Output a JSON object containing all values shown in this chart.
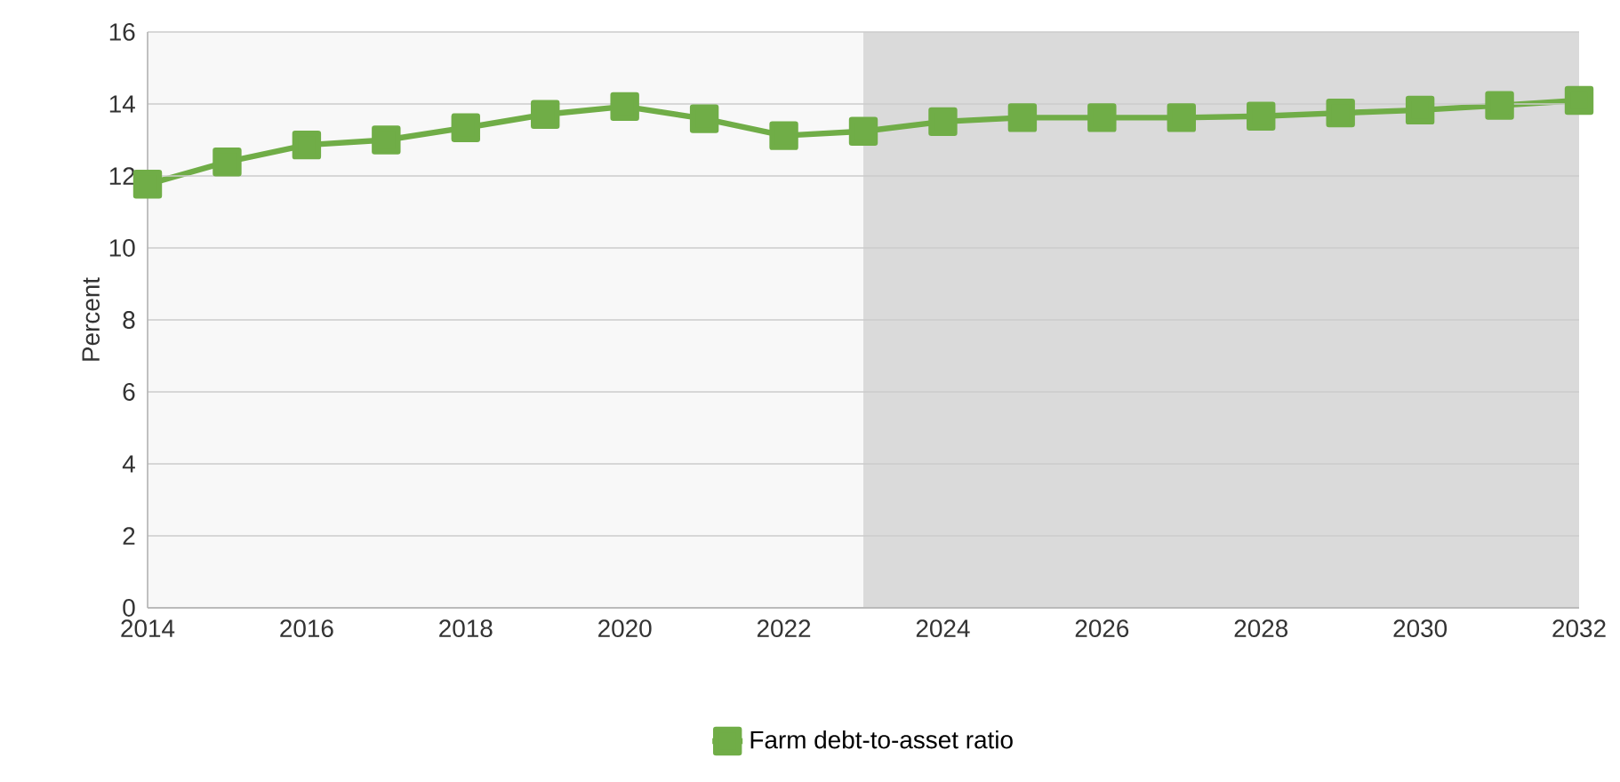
{
  "chart_data": {
    "type": "line",
    "ylabel": "Percent",
    "x": [
      2014,
      2015,
      2016,
      2017,
      2018,
      2019,
      2020,
      2021,
      2022,
      2023,
      2024,
      2025,
      2026,
      2027,
      2028,
      2029,
      2030,
      2031,
      2032
    ],
    "series": [
      {
        "name": "Farm debt-to-asset ratio",
        "color": "#70ad47",
        "values": [
          11.77,
          12.39,
          12.86,
          13.0,
          13.34,
          13.71,
          13.93,
          13.59,
          13.12,
          13.24,
          13.51,
          13.62,
          13.62,
          13.62,
          13.66,
          13.75,
          13.83,
          13.96,
          14.1
        ]
      }
    ],
    "xlim": [
      2014,
      2032
    ],
    "xticks": [
      2014,
      2016,
      2018,
      2020,
      2022,
      2024,
      2026,
      2028,
      2030,
      2032
    ],
    "ylim": [
      0,
      16
    ],
    "yticks": [
      0,
      2,
      4,
      6,
      8,
      10,
      12,
      14,
      16
    ],
    "bands": [
      {
        "axis": "x",
        "from": 2014,
        "to": 2023,
        "color": "#f8f8f8"
      },
      {
        "axis": "x",
        "from": 2023,
        "to": 2032,
        "color": "#dadada"
      }
    ],
    "grid": "y",
    "legend": "bottom",
    "marker": "square",
    "line_style": "solid"
  }
}
